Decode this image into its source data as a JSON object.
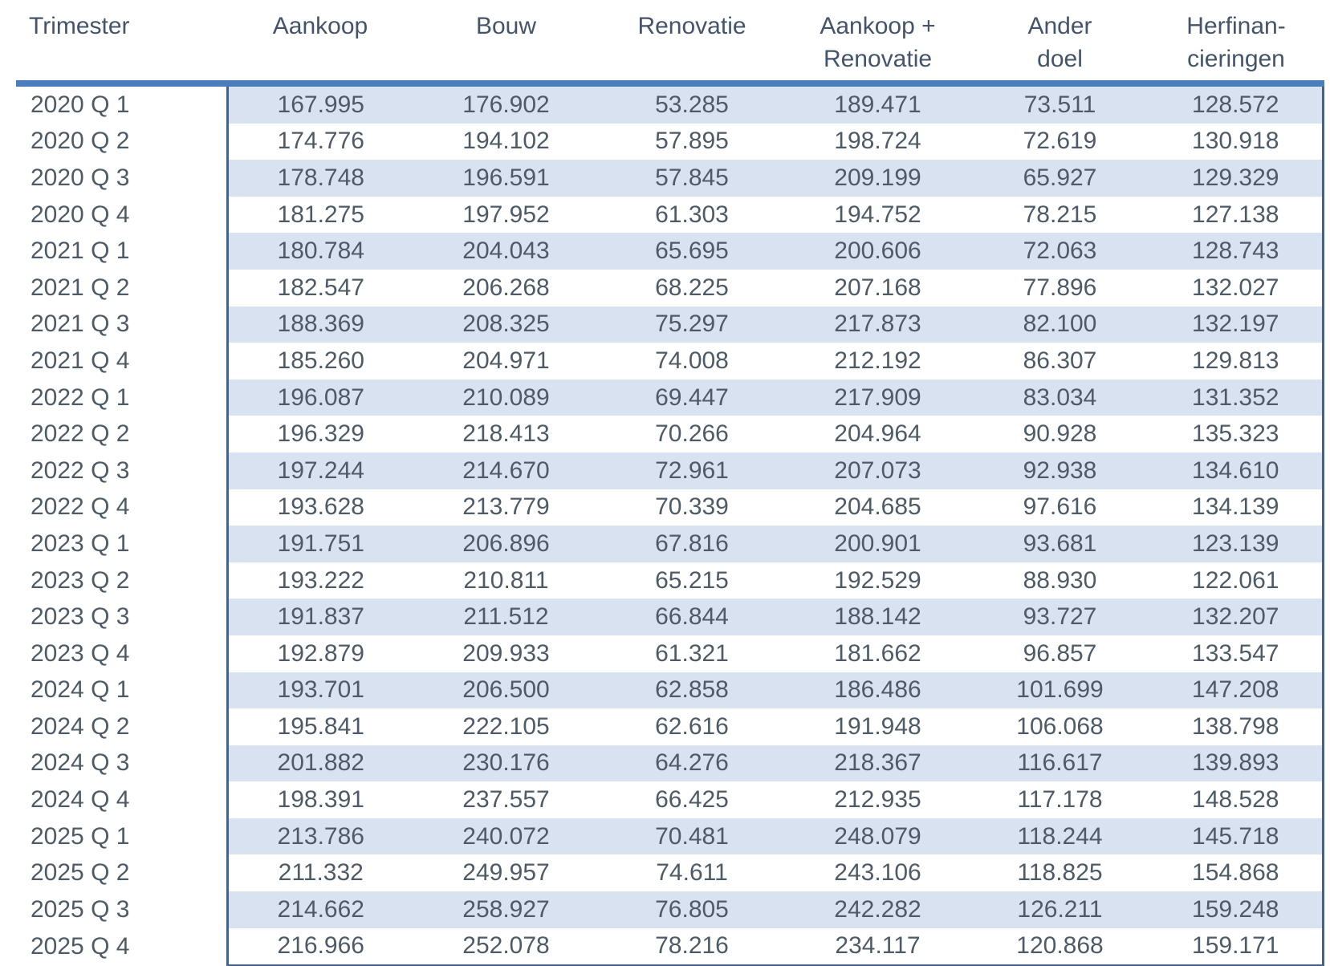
{
  "colors": {
    "header_band": "#4A7EBB",
    "data_border": "#44618C",
    "stripe_fill": "#D9E2F0",
    "header_text": "#44546A",
    "body_text": "#4E5B67",
    "background": "#FFFFFF"
  },
  "table": {
    "headers": [
      {
        "line1": "Trimester",
        "line2": ""
      },
      {
        "line1": "Aankoop",
        "line2": ""
      },
      {
        "line1": "Bouw",
        "line2": ""
      },
      {
        "line1": "Renovatie",
        "line2": ""
      },
      {
        "line1": "Aankoop +",
        "line2": "Renovatie"
      },
      {
        "line1": "Ander",
        "line2": "doel"
      },
      {
        "line1": "Herfinan-",
        "line2": "cieringen"
      }
    ],
    "rows": [
      {
        "q": "2020 Q 1",
        "v": [
          "167.995",
          "176.902",
          "53.285",
          "189.471",
          "73.511",
          "128.572"
        ]
      },
      {
        "q": "2020 Q 2",
        "v": [
          "174.776",
          "194.102",
          "57.895",
          "198.724",
          "72.619",
          "130.918"
        ]
      },
      {
        "q": "2020 Q 3",
        "v": [
          "178.748",
          "196.591",
          "57.845",
          "209.199",
          "65.927",
          "129.329"
        ]
      },
      {
        "q": "2020 Q 4",
        "v": [
          "181.275",
          "197.952",
          "61.303",
          "194.752",
          "78.215",
          "127.138"
        ]
      },
      {
        "q": "2021 Q 1",
        "v": [
          "180.784",
          "204.043",
          "65.695",
          "200.606",
          "72.063",
          "128.743"
        ]
      },
      {
        "q": "2021 Q 2",
        "v": [
          "182.547",
          "206.268",
          "68.225",
          "207.168",
          "77.896",
          "132.027"
        ]
      },
      {
        "q": "2021 Q 3",
        "v": [
          "188.369",
          "208.325",
          "75.297",
          "217.873",
          "82.100",
          "132.197"
        ]
      },
      {
        "q": "2021 Q 4",
        "v": [
          "185.260",
          "204.971",
          "74.008",
          "212.192",
          "86.307",
          "129.813"
        ]
      },
      {
        "q": "2022 Q 1",
        "v": [
          "196.087",
          "210.089",
          "69.447",
          "217.909",
          "83.034",
          "131.352"
        ]
      },
      {
        "q": "2022 Q 2",
        "v": [
          "196.329",
          "218.413",
          "70.266",
          "204.964",
          "90.928",
          "135.323"
        ]
      },
      {
        "q": "2022 Q 3",
        "v": [
          "197.244",
          "214.670",
          "72.961",
          "207.073",
          "92.938",
          "134.610"
        ]
      },
      {
        "q": "2022 Q 4",
        "v": [
          "193.628",
          "213.779",
          "70.339",
          "204.685",
          "97.616",
          "134.139"
        ]
      },
      {
        "q": "2023 Q 1",
        "v": [
          "191.751",
          "206.896",
          "67.816",
          "200.901",
          "93.681",
          "123.139"
        ]
      },
      {
        "q": "2023 Q 2",
        "v": [
          "193.222",
          "210.811",
          "65.215",
          "192.529",
          "88.930",
          "122.061"
        ]
      },
      {
        "q": "2023 Q 3",
        "v": [
          "191.837",
          "211.512",
          "66.844",
          "188.142",
          "93.727",
          "132.207"
        ]
      },
      {
        "q": "2023 Q 4",
        "v": [
          "192.879",
          "209.933",
          "61.321",
          "181.662",
          "96.857",
          "133.547"
        ]
      },
      {
        "q": "2024 Q 1",
        "v": [
          "193.701",
          "206.500",
          "62.858",
          "186.486",
          "101.699",
          "147.208"
        ]
      },
      {
        "q": "2024 Q 2",
        "v": [
          "195.841",
          "222.105",
          "62.616",
          "191.948",
          "106.068",
          "138.798"
        ]
      },
      {
        "q": "2024 Q 3",
        "v": [
          "201.882",
          "230.176",
          "64.276",
          "218.367",
          "116.617",
          "139.893"
        ]
      },
      {
        "q": "2024 Q 4",
        "v": [
          "198.391",
          "237.557",
          "66.425",
          "212.935",
          "117.178",
          "148.528"
        ]
      },
      {
        "q": "2025 Q 1",
        "v": [
          "213.786",
          "240.072",
          "70.481",
          "248.079",
          "118.244",
          "145.718"
        ]
      },
      {
        "q": "2025 Q 2",
        "v": [
          "211.332",
          "249.957",
          "74.611",
          "243.106",
          "118.825",
          "154.868"
        ]
      },
      {
        "q": "2025 Q 3",
        "v": [
          "214.662",
          "258.927",
          "76.805",
          "242.282",
          "126.211",
          "159.248"
        ]
      },
      {
        "q": "2025 Q 4",
        "v": [
          "216.966",
          "252.078",
          "78.216",
          "234.117",
          "120.868",
          "159.171"
        ]
      }
    ]
  },
  "chart_data": {
    "type": "table",
    "title": "",
    "categories": [
      "2020 Q 1",
      "2020 Q 2",
      "2020 Q 3",
      "2020 Q 4",
      "2021 Q 1",
      "2021 Q 2",
      "2021 Q 3",
      "2021 Q 4",
      "2022 Q 1",
      "2022 Q 2",
      "2022 Q 3",
      "2022 Q 4",
      "2023 Q 1",
      "2023 Q 2",
      "2023 Q 3",
      "2023 Q 4",
      "2024 Q 1",
      "2024 Q 2",
      "2024 Q 3",
      "2024 Q 4",
      "2025 Q 1",
      "2025 Q 2",
      "2025 Q 3",
      "2025 Q 4"
    ],
    "category_label": "Trimester",
    "series": [
      {
        "name": "Aankoop",
        "values": [
          167995,
          174776,
          178748,
          181275,
          180784,
          182547,
          188369,
          185260,
          196087,
          196329,
          197244,
          193628,
          191751,
          193222,
          191837,
          192879,
          193701,
          195841,
          201882,
          198391,
          213786,
          211332,
          214662,
          216966
        ]
      },
      {
        "name": "Bouw",
        "values": [
          176902,
          194102,
          196591,
          197952,
          204043,
          206268,
          208325,
          204971,
          210089,
          218413,
          214670,
          213779,
          206896,
          210811,
          211512,
          209933,
          206500,
          222105,
          230176,
          237557,
          240072,
          249957,
          258927,
          252078
        ]
      },
      {
        "name": "Renovatie",
        "values": [
          53285,
          57895,
          57845,
          61303,
          65695,
          68225,
          75297,
          74008,
          69447,
          70266,
          72961,
          70339,
          67816,
          65215,
          66844,
          61321,
          62858,
          62616,
          64276,
          66425,
          70481,
          74611,
          76805,
          78216
        ]
      },
      {
        "name": "Aankoop + Renovatie",
        "values": [
          189471,
          198724,
          209199,
          194752,
          200606,
          207168,
          217873,
          212192,
          217909,
          204964,
          207073,
          204685,
          200901,
          192529,
          188142,
          181662,
          186486,
          191948,
          218367,
          212935,
          248079,
          243106,
          242282,
          234117
        ]
      },
      {
        "name": "Ander doel",
        "values": [
          73511,
          72619,
          65927,
          78215,
          72063,
          77896,
          82100,
          86307,
          83034,
          90928,
          92938,
          97616,
          93681,
          88930,
          93727,
          96857,
          101699,
          106068,
          116617,
          117178,
          118244,
          118825,
          126211,
          120868
        ]
      },
      {
        "name": "Herfinancieringen",
        "values": [
          128572,
          130918,
          129329,
          127138,
          128743,
          132027,
          132197,
          129813,
          131352,
          135323,
          134610,
          134139,
          123139,
          122061,
          132207,
          133547,
          147208,
          138798,
          139893,
          148528,
          145718,
          154868,
          159248,
          159171
        ]
      }
    ],
    "number_format": "thousands separated by dot",
    "layout": {
      "striped_rows": true,
      "stripe_start": "first data row",
      "grid": "off",
      "legend": "none"
    }
  }
}
